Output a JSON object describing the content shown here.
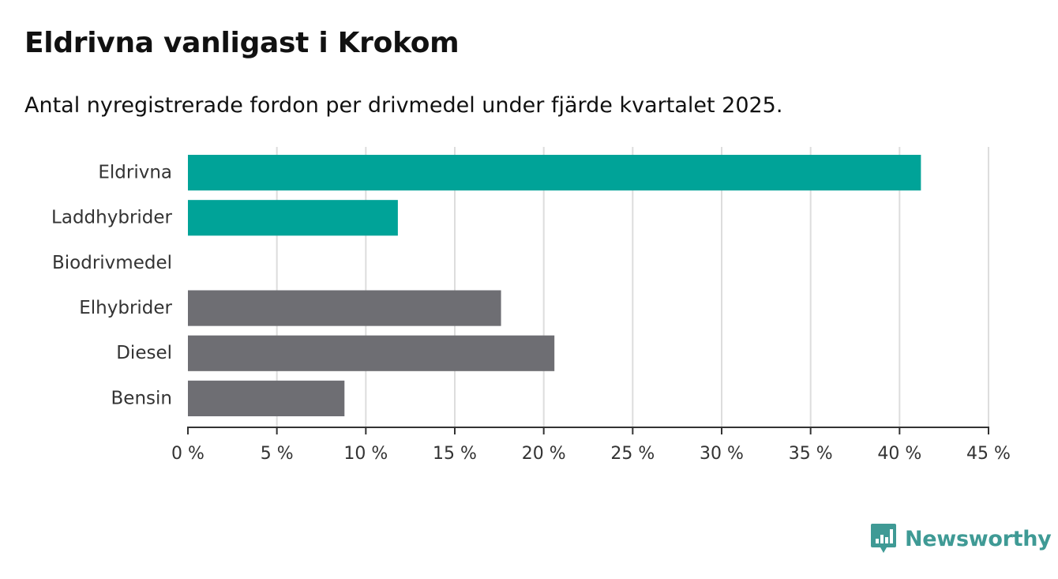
{
  "title": "Eldrivna vanligast i Krokom",
  "subtitle": "Antal nyregistrerade fordon per drivmedel under fjärde kvartalet 2025.",
  "logo": {
    "text": "Newsworthy",
    "icon": "newsworthy-logo-icon"
  },
  "colors": {
    "highlight": "#00a398",
    "other": "#6e6e73",
    "grid": "#dddddd",
    "axis": "#333333",
    "logo": "#3f9a95"
  },
  "chart_data": {
    "type": "bar",
    "orientation": "horizontal",
    "title": "Eldrivna vanligast i Krokom",
    "subtitle": "Antal nyregistrerade fordon per drivmedel under fjärde kvartalet 2025.",
    "xlabel": "",
    "ylabel": "",
    "xlim": [
      0,
      45
    ],
    "grid": true,
    "categories": [
      "Eldrivna",
      "Laddhybrider",
      "Biodrivmedel",
      "Elhybrider",
      "Diesel",
      "Bensin"
    ],
    "values": [
      41.2,
      11.8,
      0,
      17.6,
      20.6,
      8.8
    ],
    "highlighted": [
      true,
      true,
      true,
      false,
      false,
      false
    ],
    "ticks": [
      0,
      5,
      10,
      15,
      20,
      25,
      30,
      35,
      40,
      45
    ],
    "tick_labels": [
      "0 %",
      "5 %",
      "10 %",
      "15 %",
      "20 %",
      "25 %",
      "30 %",
      "35 %",
      "40 %",
      "45 %"
    ]
  }
}
